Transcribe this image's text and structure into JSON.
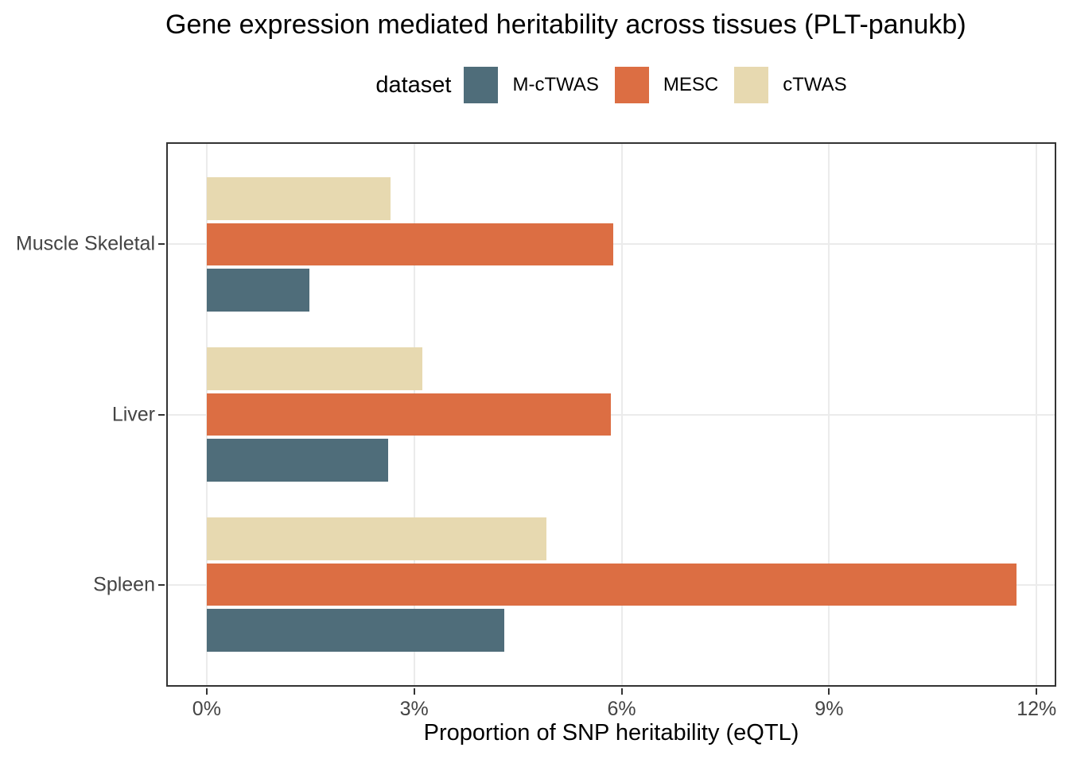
{
  "chart_data": {
    "type": "bar",
    "orientation": "horizontal",
    "title": "Gene expression mediated heritability across tissues (PLT-panukb)",
    "xlabel": "Proportion of SNP heritability (eQTL)",
    "legend_title": "dataset",
    "legend_position": "top",
    "categories": [
      "Muscle Skeletal",
      "Liver",
      "Spleen"
    ],
    "series": [
      {
        "name": "M-cTWAS",
        "color": "#4f6d7a",
        "values": [
          1.48,
          2.62,
          4.3
        ]
      },
      {
        "name": "MESC",
        "color": "#dc6e43",
        "values": [
          5.88,
          5.85,
          11.71
        ]
      },
      {
        "name": "cTWAS",
        "color": "#e7d9b0",
        "values": [
          2.66,
          3.12,
          4.91
        ]
      }
    ],
    "bar_order_top_to_bottom": [
      "cTWAS",
      "MESC",
      "M-cTWAS"
    ],
    "x_ticks": [
      "0%",
      "3%",
      "6%",
      "9%",
      "12%"
    ],
    "x_tick_values": [
      0,
      3,
      6,
      9,
      12
    ],
    "xlim": [
      -0.585,
      12.285
    ],
    "grid": "major-only",
    "colors": {
      "grid": "#ebebeb",
      "panel_border": "#333333",
      "tick_mark": "#333333",
      "axis_text": "#444444",
      "title_text": "#000000"
    }
  }
}
